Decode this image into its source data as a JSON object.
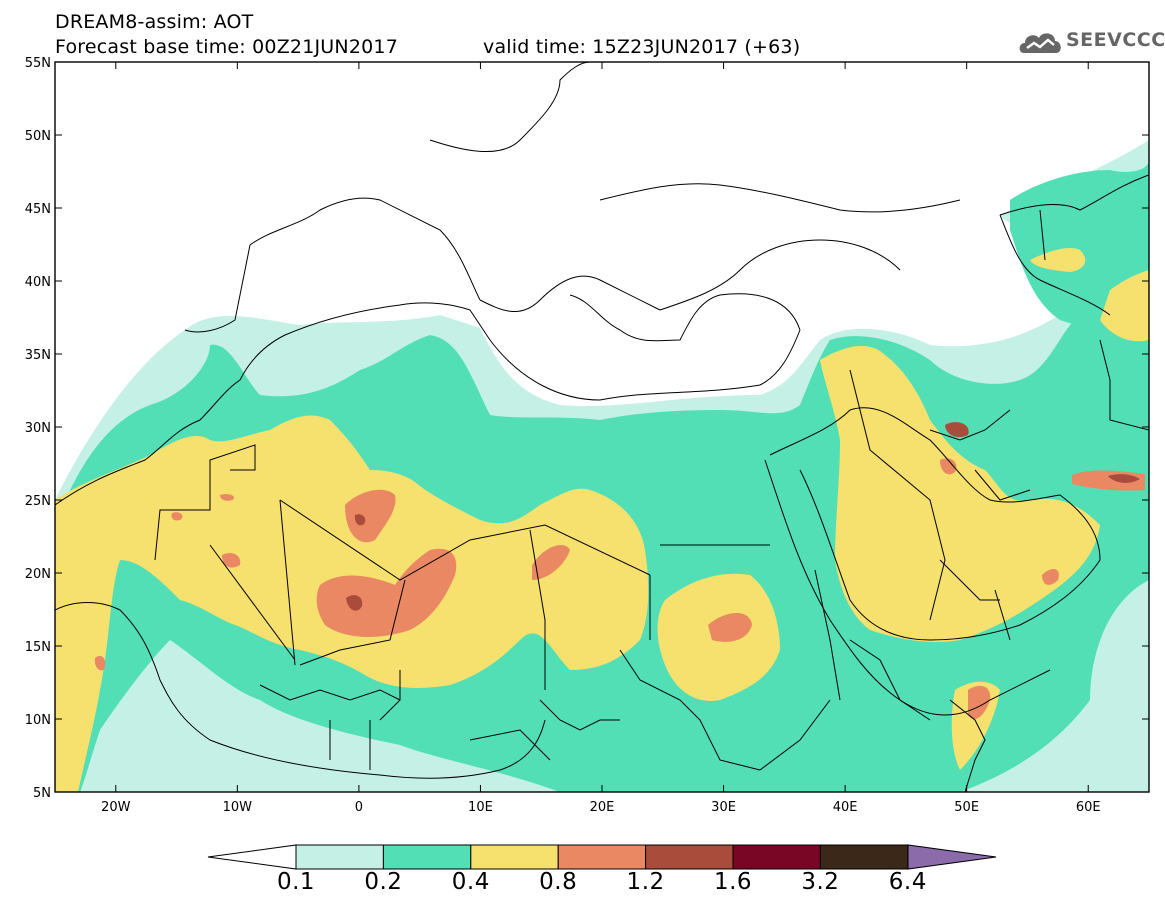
{
  "title": {
    "line1": "DREAM8-assim: AOT",
    "base": "Forecast base time: 00Z21JUN2017",
    "valid": "valid time: 15Z23JUN2017 (+63)"
  },
  "logo": {
    "text": "SEEVCCC",
    "icon": "cloud-logo-icon"
  },
  "map": {
    "lon_range": [
      -25,
      65
    ],
    "lat_range": [
      5,
      55
    ],
    "lat_ticks": [
      "5N",
      "10N",
      "15N",
      "20N",
      "25N",
      "30N",
      "35N",
      "40N",
      "45N",
      "50N",
      "55N"
    ],
    "lon_ticks": [
      "20W",
      "10W",
      "0",
      "10E",
      "20E",
      "30E",
      "40E",
      "50E",
      "60E"
    ],
    "variable": "Aerosol optical thickness"
  },
  "colorbar": {
    "levels": [
      "0.1",
      "0.2",
      "0.4",
      "0.8",
      "1.2",
      "1.6",
      "3.2",
      "6.4"
    ],
    "colors": {
      "under": "#ffffff",
      "b1": "#c4f0e6",
      "b2": "#52dfb6",
      "b3": "#f6e06e",
      "b4": "#e98863",
      "b5": "#a94c3c",
      "b6": "#7a0626",
      "b7": "#3b2818",
      "over": "#8c6bab"
    }
  }
}
